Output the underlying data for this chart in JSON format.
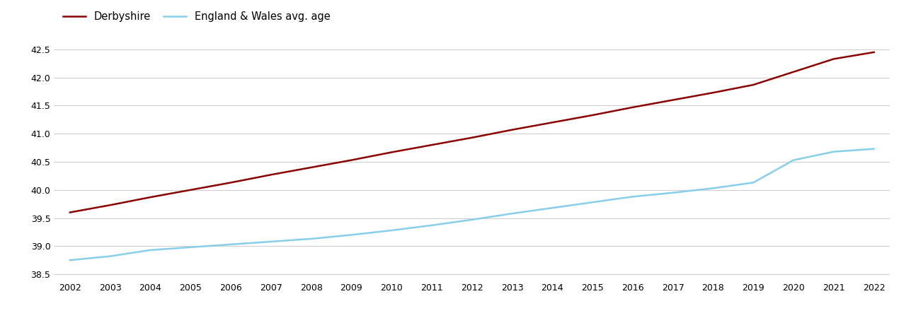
{
  "years": [
    2002,
    2003,
    2004,
    2005,
    2006,
    2007,
    2008,
    2009,
    2010,
    2011,
    2012,
    2013,
    2014,
    2015,
    2016,
    2017,
    2018,
    2019,
    2020,
    2021,
    2022
  ],
  "derbyshire": [
    39.6,
    39.73,
    39.87,
    40.0,
    40.13,
    40.27,
    40.4,
    40.53,
    40.67,
    40.8,
    40.93,
    41.07,
    41.2,
    41.33,
    41.47,
    41.6,
    41.73,
    41.87,
    42.1,
    42.33,
    42.45
  ],
  "england_wales": [
    38.75,
    38.82,
    38.93,
    38.98,
    39.03,
    39.08,
    39.13,
    39.2,
    39.28,
    39.37,
    39.47,
    39.58,
    39.68,
    39.78,
    39.88,
    39.95,
    40.03,
    40.13,
    40.53,
    40.68,
    40.73
  ],
  "derbyshire_color": "#8B0000",
  "england_wales_color": "#87CEEB",
  "background_color": "#ffffff",
  "grid_color": "#d0d0d0",
  "legend_derbyshire": "Derbyshire",
  "legend_ew": "England & Wales avg. age",
  "ylim": [
    38.4,
    42.7
  ],
  "yticks": [
    38.5,
    39.0,
    39.5,
    40.0,
    40.5,
    41.0,
    41.5,
    42.0,
    42.5
  ],
  "line_width": 1.8
}
